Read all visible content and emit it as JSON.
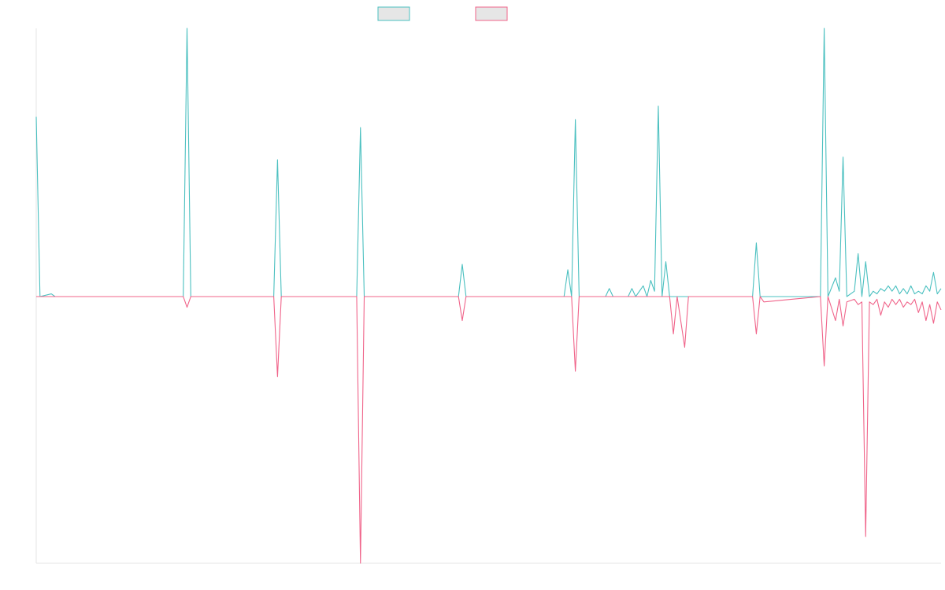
{
  "chart_data": {
    "type": "line",
    "title": "",
    "xlabel": "",
    "ylabel": "",
    "grid": false,
    "legend": {
      "placement": "top-center",
      "entries": [
        {
          "label": "",
          "color": "#4bc0c0",
          "fill": "#e6e6e6"
        },
        {
          "label": "",
          "color": "#f0648a",
          "fill": "#e6e6e6"
        }
      ]
    },
    "x_index_range": [
      0,
      240
    ],
    "ylim": [
      -1.0,
      1.0
    ],
    "series": [
      {
        "color": "#4bc0c0",
        "values": [
          [
            0,
            0.67
          ],
          [
            1,
            0
          ],
          [
            4,
            0.01
          ],
          [
            5,
            0
          ],
          [
            39,
            0
          ],
          [
            40,
            1.0
          ],
          [
            41,
            0
          ],
          [
            63,
            0
          ],
          [
            64,
            0.51
          ],
          [
            65,
            0
          ],
          [
            85,
            0
          ],
          [
            86,
            0.63
          ],
          [
            87,
            0
          ],
          [
            112,
            0
          ],
          [
            113,
            0.12
          ],
          [
            114,
            0
          ],
          [
            140,
            0
          ],
          [
            141,
            0.1
          ],
          [
            142,
            0
          ],
          [
            143,
            0.66
          ],
          [
            144,
            0
          ],
          [
            151,
            0
          ],
          [
            152,
            0.03
          ],
          [
            153,
            0
          ],
          [
            157,
            0
          ],
          [
            158,
            0.03
          ],
          [
            159,
            0
          ],
          [
            161,
            0.04
          ],
          [
            162,
            0
          ],
          [
            163,
            0.06
          ],
          [
            164,
            0.02
          ],
          [
            165,
            0.71
          ],
          [
            166,
            0
          ],
          [
            167,
            0.13
          ],
          [
            168,
            0
          ],
          [
            190,
            0
          ],
          [
            191,
            0.2
          ],
          [
            192,
            0
          ],
          [
            208,
            0
          ],
          [
            209,
            1.0
          ],
          [
            210,
            0
          ],
          [
            212,
            0.07
          ],
          [
            213,
            0.02
          ],
          [
            214,
            0.52
          ],
          [
            215,
            0
          ],
          [
            217,
            0.02
          ],
          [
            218,
            0.16
          ],
          [
            219,
            0
          ],
          [
            220,
            0.13
          ],
          [
            221,
            0
          ],
          [
            222,
            0.02
          ],
          [
            223,
            0.01
          ],
          [
            224,
            0.03
          ],
          [
            225,
            0.02
          ],
          [
            226,
            0.04
          ],
          [
            227,
            0.02
          ],
          [
            228,
            0.04
          ],
          [
            229,
            0.01
          ],
          [
            230,
            0.03
          ],
          [
            231,
            0.01
          ],
          [
            232,
            0.04
          ],
          [
            233,
            0.01
          ],
          [
            234,
            0.02
          ],
          [
            235,
            0.01
          ],
          [
            236,
            0.04
          ],
          [
            237,
            0.02
          ],
          [
            238,
            0.09
          ],
          [
            239,
            0.01
          ],
          [
            240,
            0.03
          ]
        ]
      },
      {
        "color": "#f0648a",
        "values": [
          [
            0,
            0
          ],
          [
            39,
            0
          ],
          [
            40,
            -0.04
          ],
          [
            41,
            0
          ],
          [
            63,
            0
          ],
          [
            64,
            -0.3
          ],
          [
            65,
            0
          ],
          [
            85,
            0
          ],
          [
            86,
            -1.0
          ],
          [
            87,
            0
          ],
          [
            112,
            0
          ],
          [
            113,
            -0.09
          ],
          [
            114,
            0
          ],
          [
            142,
            0
          ],
          [
            143,
            -0.28
          ],
          [
            144,
            0
          ],
          [
            168,
            0
          ],
          [
            169,
            -0.14
          ],
          [
            170,
            0
          ],
          [
            172,
            -0.19
          ],
          [
            173,
            0
          ],
          [
            190,
            0
          ],
          [
            191,
            -0.14
          ],
          [
            192,
            0
          ],
          [
            193,
            -0.02
          ],
          [
            208,
            0
          ],
          [
            209,
            -0.26
          ],
          [
            210,
            0
          ],
          [
            212,
            -0.09
          ],
          [
            213,
            -0.01
          ],
          [
            214,
            -0.11
          ],
          [
            215,
            -0.02
          ],
          [
            217,
            -0.01
          ],
          [
            218,
            -0.03
          ],
          [
            219,
            -0.02
          ],
          [
            220,
            -0.9
          ],
          [
            221,
            -0.02
          ],
          [
            222,
            -0.03
          ],
          [
            223,
            -0.01
          ],
          [
            224,
            -0.07
          ],
          [
            225,
            -0.02
          ],
          [
            226,
            -0.04
          ],
          [
            227,
            -0.01
          ],
          [
            228,
            -0.03
          ],
          [
            229,
            -0.01
          ],
          [
            230,
            -0.04
          ],
          [
            231,
            -0.02
          ],
          [
            232,
            -0.03
          ],
          [
            233,
            -0.01
          ],
          [
            234,
            -0.06
          ],
          [
            235,
            -0.02
          ],
          [
            236,
            -0.09
          ],
          [
            237,
            -0.03
          ],
          [
            238,
            -0.1
          ],
          [
            239,
            -0.02
          ],
          [
            240,
            -0.05
          ]
        ]
      }
    ]
  }
}
